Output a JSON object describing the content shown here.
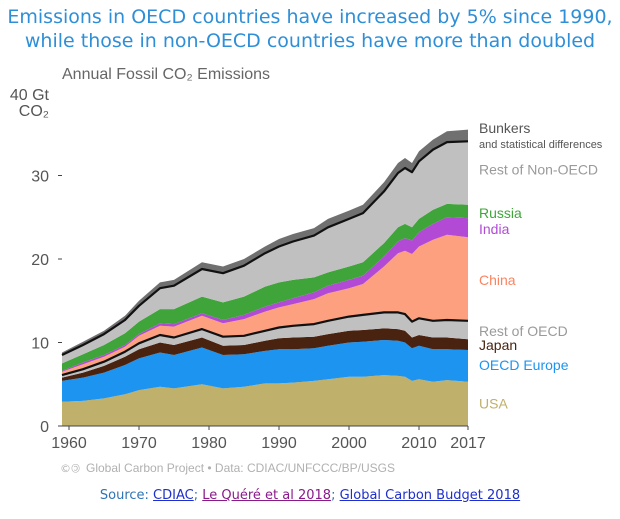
{
  "headline": {
    "line1": "Emissions in OECD countries have increased by 5% since 1990,",
    "line2": "while those in non-OECD countries have more than doubled"
  },
  "source": {
    "prefix": "Source: ",
    "link1": "CDIAC",
    "sep1": "; ",
    "link2": "Le Quéré et al 2018",
    "sep2": "; ",
    "link3": "Global Carbon Budget 2018"
  },
  "chart_data": {
    "type": "area",
    "title": "Annual Fossil CO₂ Emissions",
    "ylabel_top": "40 Gt",
    "ylabel_bottom": "CO₂",
    "ylim": [
      0,
      40
    ],
    "xlim": [
      1959,
      2017
    ],
    "yticks": [
      "0",
      "10",
      "20",
      "30"
    ],
    "xticks": [
      "1960",
      "1970",
      "1980",
      "1990",
      "2000",
      "2010",
      "2017"
    ],
    "xtick_values": [
      1960,
      1970,
      1980,
      1990,
      2000,
      2010,
      2017
    ],
    "footer": "Global Carbon Project  •  Data: CDIAC/UNFCCC/BP/USGS",
    "x": [
      1959,
      1962,
      1965,
      1968,
      1970,
      1973,
      1975,
      1979,
      1982,
      1985,
      1988,
      1990,
      1992,
      1995,
      1997,
      2000,
      2002,
      2005,
      2007,
      2008,
      2009,
      2010,
      2012,
      2014,
      2017
    ],
    "series": [
      {
        "name": "USA",
        "color": "#bfb06b",
        "values": [
          2.9,
          3.0,
          3.3,
          3.8,
          4.3,
          4.7,
          4.5,
          5.0,
          4.5,
          4.7,
          5.1,
          5.1,
          5.2,
          5.4,
          5.6,
          5.9,
          5.9,
          6.1,
          6.0,
          5.9,
          5.4,
          5.6,
          5.3,
          5.5,
          5.3
        ]
      },
      {
        "name": "OECD Europe",
        "color": "#1d94f0",
        "values": [
          2.5,
          2.8,
          3.1,
          3.5,
          3.8,
          4.1,
          4.0,
          4.4,
          4.0,
          3.9,
          3.9,
          4.1,
          4.0,
          3.9,
          4.0,
          4.1,
          4.2,
          4.2,
          4.2,
          4.1,
          3.9,
          4.0,
          3.9,
          3.7,
          3.8
        ]
      },
      {
        "name": "Japan",
        "color": "#4a2310",
        "values": [
          0.4,
          0.6,
          0.8,
          1.0,
          1.1,
          1.2,
          1.2,
          1.2,
          1.1,
          1.1,
          1.2,
          1.3,
          1.4,
          1.4,
          1.4,
          1.4,
          1.4,
          1.4,
          1.4,
          1.4,
          1.3,
          1.3,
          1.4,
          1.4,
          1.3
        ]
      },
      {
        "name": "Rest of OECD",
        "color": "#c0c0c0",
        "values": [
          0.3,
          0.4,
          0.5,
          0.6,
          0.7,
          0.9,
          0.9,
          1.0,
          1.1,
          1.1,
          1.2,
          1.3,
          1.4,
          1.5,
          1.6,
          1.7,
          1.8,
          1.9,
          2.0,
          2.0,
          1.9,
          2.0,
          2.0,
          2.1,
          2.2
        ]
      },
      {
        "name": "China",
        "color": "#fca07f",
        "values": [
          0.4,
          0.6,
          0.6,
          0.6,
          0.9,
          1.1,
          1.3,
          1.6,
          1.6,
          2.0,
          2.3,
          2.4,
          2.6,
          3.0,
          3.3,
          3.4,
          3.7,
          5.5,
          7.1,
          7.6,
          8.1,
          8.6,
          9.7,
          10.2,
          10.0
        ]
      },
      {
        "name": "India",
        "color": "#b24ad6",
        "values": [
          0.1,
          0.2,
          0.2,
          0.2,
          0.2,
          0.3,
          0.3,
          0.3,
          0.4,
          0.5,
          0.6,
          0.6,
          0.7,
          0.8,
          0.9,
          1.0,
          1.0,
          1.2,
          1.4,
          1.5,
          1.6,
          1.7,
          1.9,
          2.1,
          2.3
        ]
      },
      {
        "name": "Russia",
        "color": "#3fa53a",
        "values": [
          0.9,
          1.0,
          1.2,
          1.4,
          1.5,
          1.7,
          1.8,
          2.0,
          2.1,
          2.2,
          2.4,
          2.4,
          2.2,
          1.8,
          1.6,
          1.6,
          1.6,
          1.6,
          1.7,
          1.7,
          1.6,
          1.6,
          1.7,
          1.6,
          1.6
        ]
      },
      {
        "name": "Rest of Non-OECD",
        "color": "#c0c0c0",
        "values": [
          1.0,
          1.1,
          1.3,
          1.6,
          1.9,
          2.5,
          2.8,
          3.3,
          3.5,
          3.7,
          4.0,
          4.3,
          4.6,
          5.0,
          5.4,
          5.7,
          5.9,
          6.2,
          6.5,
          6.7,
          6.6,
          6.9,
          7.2,
          7.4,
          7.6
        ]
      },
      {
        "name": "Bunkers",
        "sublabel": "and statistical differences",
        "color": "#707070",
        "values": [
          0.3,
          0.4,
          0.4,
          0.5,
          0.6,
          0.7,
          0.7,
          0.8,
          0.8,
          0.8,
          0.8,
          0.9,
          0.9,
          0.9,
          1.0,
          1.0,
          1.0,
          1.1,
          1.2,
          1.2,
          1.1,
          1.2,
          1.2,
          1.3,
          1.4
        ]
      }
    ],
    "oecd_boundary_series_index": 3,
    "label_colors": {
      "USA": "#bfb06b",
      "OECD Europe": "#1d94f0",
      "Japan": "#4a2310",
      "Rest of OECD": "#9a9a9a",
      "China": "#fb8460",
      "India": "#b24ad6",
      "Russia": "#3fa53a",
      "Rest of Non-OECD": "#9a9a9a",
      "Bunkers": "#555555"
    }
  }
}
